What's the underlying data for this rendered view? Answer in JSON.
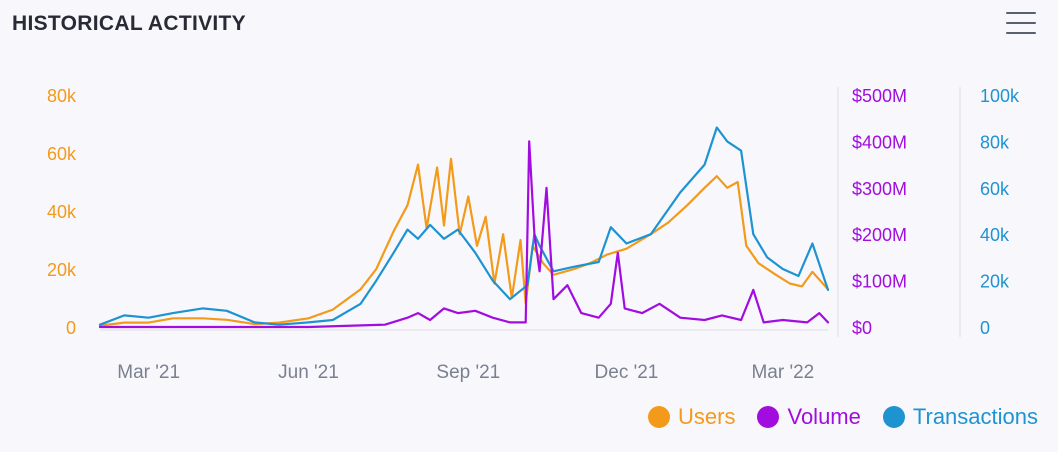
{
  "header": {
    "title": "HISTORICAL ACTIVITY",
    "menu_icon": "hamburger-menu-icon"
  },
  "colors": {
    "users": "#f39a1a",
    "volume": "#a20ddf",
    "transactions": "#1e93d2",
    "axis_text": "#7a8090",
    "grid": "#e6e6ee"
  },
  "legend": [
    {
      "name": "Users",
      "color": "#f39a1a"
    },
    {
      "name": "Volume",
      "color": "#a20ddf"
    },
    {
      "name": "Transactions",
      "color": "#1e93d2"
    }
  ],
  "chart_data": {
    "type": "line",
    "title": "HISTORICAL ACTIVITY",
    "x_ticks": [
      "Mar '21",
      "Jun '21",
      "Sep '21",
      "Dec '21",
      "Mar '22"
    ],
    "x_tick_dates": [
      "2021-03-01",
      "2021-06-01",
      "2021-09-01",
      "2021-12-01",
      "2022-03-01"
    ],
    "x_range": [
      "2021-02-01",
      "2022-03-27"
    ],
    "axes": {
      "users": {
        "ticks": [
          "80k",
          "60k",
          "40k",
          "20k",
          "0"
        ],
        "range": [
          0,
          80000
        ]
      },
      "volume": {
        "ticks": [
          "$500M",
          "$400M",
          "$300M",
          "$200M",
          "$100M",
          "$0"
        ],
        "range": [
          0,
          500000000
        ]
      },
      "transactions": {
        "ticks": [
          "100k",
          "80k",
          "60k",
          "40k",
          "20k",
          "0"
        ],
        "range": [
          0,
          100000
        ]
      }
    },
    "grid": false,
    "legend_position": "bottom-right",
    "series": [
      {
        "name": "Users",
        "axis": "users",
        "points": [
          [
            "2021-02-01",
            500
          ],
          [
            "2021-02-15",
            1500
          ],
          [
            "2021-03-01",
            1500
          ],
          [
            "2021-03-15",
            3000
          ],
          [
            "2021-04-01",
            3000
          ],
          [
            "2021-04-15",
            2500
          ],
          [
            "2021-05-01",
            1000
          ],
          [
            "2021-05-15",
            1500
          ],
          [
            "2021-06-01",
            3000
          ],
          [
            "2021-06-15",
            6000
          ],
          [
            "2021-07-01",
            13000
          ],
          [
            "2021-07-10",
            20000
          ],
          [
            "2021-07-20",
            33000
          ],
          [
            "2021-07-28",
            42000
          ],
          [
            "2021-08-03",
            56000
          ],
          [
            "2021-08-08",
            34000
          ],
          [
            "2021-08-14",
            55000
          ],
          [
            "2021-08-18",
            35000
          ],
          [
            "2021-08-22",
            58000
          ],
          [
            "2021-08-27",
            32000
          ],
          [
            "2021-09-01",
            45000
          ],
          [
            "2021-09-06",
            28000
          ],
          [
            "2021-09-11",
            38000
          ],
          [
            "2021-09-16",
            15000
          ],
          [
            "2021-09-21",
            32000
          ],
          [
            "2021-09-26",
            10000
          ],
          [
            "2021-10-01",
            30000
          ],
          [
            "2021-10-04",
            8000
          ],
          [
            "2021-10-08",
            28000
          ],
          [
            "2021-10-14",
            22000
          ],
          [
            "2021-10-20",
            18000
          ],
          [
            "2021-11-01",
            20000
          ],
          [
            "2021-11-10",
            22000
          ],
          [
            "2021-11-20",
            25000
          ],
          [
            "2021-12-01",
            27000
          ],
          [
            "2021-12-15",
            32000
          ],
          [
            "2021-12-25",
            36000
          ],
          [
            "2022-01-05",
            42000
          ],
          [
            "2022-01-15",
            48000
          ],
          [
            "2022-01-22",
            52000
          ],
          [
            "2022-01-28",
            48000
          ],
          [
            "2022-02-03",
            50000
          ],
          [
            "2022-02-08",
            28000
          ],
          [
            "2022-02-15",
            22000
          ],
          [
            "2022-02-25",
            18000
          ],
          [
            "2022-03-05",
            15000
          ],
          [
            "2022-03-12",
            14000
          ],
          [
            "2022-03-18",
            19000
          ],
          [
            "2022-03-27",
            13000
          ]
        ]
      },
      {
        "name": "Volume",
        "axis": "volume",
        "points": [
          [
            "2021-02-01",
            0
          ],
          [
            "2021-04-01",
            0
          ],
          [
            "2021-06-01",
            0
          ],
          [
            "2021-07-15",
            5000000
          ],
          [
            "2021-07-28",
            20000000
          ],
          [
            "2021-08-03",
            30000000
          ],
          [
            "2021-08-10",
            15000000
          ],
          [
            "2021-08-18",
            40000000
          ],
          [
            "2021-08-26",
            30000000
          ],
          [
            "2021-09-05",
            35000000
          ],
          [
            "2021-09-15",
            20000000
          ],
          [
            "2021-09-25",
            10000000
          ],
          [
            "2021-10-04",
            10000000
          ],
          [
            "2021-10-06",
            400000000
          ],
          [
            "2021-10-09",
            200000000
          ],
          [
            "2021-10-12",
            120000000
          ],
          [
            "2021-10-16",
            300000000
          ],
          [
            "2021-10-20",
            60000000
          ],
          [
            "2021-10-28",
            90000000
          ],
          [
            "2021-11-05",
            30000000
          ],
          [
            "2021-11-15",
            20000000
          ],
          [
            "2021-11-22",
            50000000
          ],
          [
            "2021-11-26",
            160000000
          ],
          [
            "2021-11-30",
            40000000
          ],
          [
            "2021-12-10",
            30000000
          ],
          [
            "2021-12-20",
            50000000
          ],
          [
            "2022-01-01",
            20000000
          ],
          [
            "2022-01-15",
            15000000
          ],
          [
            "2022-01-25",
            25000000
          ],
          [
            "2022-02-05",
            15000000
          ],
          [
            "2022-02-12",
            80000000
          ],
          [
            "2022-02-18",
            10000000
          ],
          [
            "2022-03-01",
            15000000
          ],
          [
            "2022-03-15",
            10000000
          ],
          [
            "2022-03-22",
            30000000
          ],
          [
            "2022-03-27",
            10000000
          ]
        ]
      },
      {
        "name": "Transactions",
        "axis": "transactions",
        "points": [
          [
            "2021-02-01",
            1000
          ],
          [
            "2021-02-15",
            5000
          ],
          [
            "2021-03-01",
            4000
          ],
          [
            "2021-03-15",
            6000
          ],
          [
            "2021-04-01",
            8000
          ],
          [
            "2021-04-15",
            7000
          ],
          [
            "2021-05-01",
            2000
          ],
          [
            "2021-05-15",
            1000
          ],
          [
            "2021-06-01",
            2000
          ],
          [
            "2021-06-15",
            3000
          ],
          [
            "2021-07-01",
            10000
          ],
          [
            "2021-07-10",
            20000
          ],
          [
            "2021-07-20",
            32000
          ],
          [
            "2021-07-28",
            42000
          ],
          [
            "2021-08-03",
            38000
          ],
          [
            "2021-08-10",
            44000
          ],
          [
            "2021-08-18",
            38000
          ],
          [
            "2021-08-26",
            42000
          ],
          [
            "2021-09-05",
            32000
          ],
          [
            "2021-09-15",
            20000
          ],
          [
            "2021-09-25",
            12000
          ],
          [
            "2021-10-05",
            18000
          ],
          [
            "2021-10-09",
            40000
          ],
          [
            "2021-10-12",
            35000
          ],
          [
            "2021-10-20",
            24000
          ],
          [
            "2021-11-01",
            26000
          ],
          [
            "2021-11-15",
            28000
          ],
          [
            "2021-11-22",
            43000
          ],
          [
            "2021-12-01",
            36000
          ],
          [
            "2021-12-15",
            40000
          ],
          [
            "2022-01-01",
            58000
          ],
          [
            "2022-01-15",
            70000
          ],
          [
            "2022-01-22",
            86000
          ],
          [
            "2022-01-28",
            80000
          ],
          [
            "2022-02-05",
            76000
          ],
          [
            "2022-02-12",
            40000
          ],
          [
            "2022-02-20",
            30000
          ],
          [
            "2022-03-01",
            25000
          ],
          [
            "2022-03-10",
            22000
          ],
          [
            "2022-03-18",
            36000
          ],
          [
            "2022-03-27",
            16000
          ]
        ]
      }
    ]
  }
}
